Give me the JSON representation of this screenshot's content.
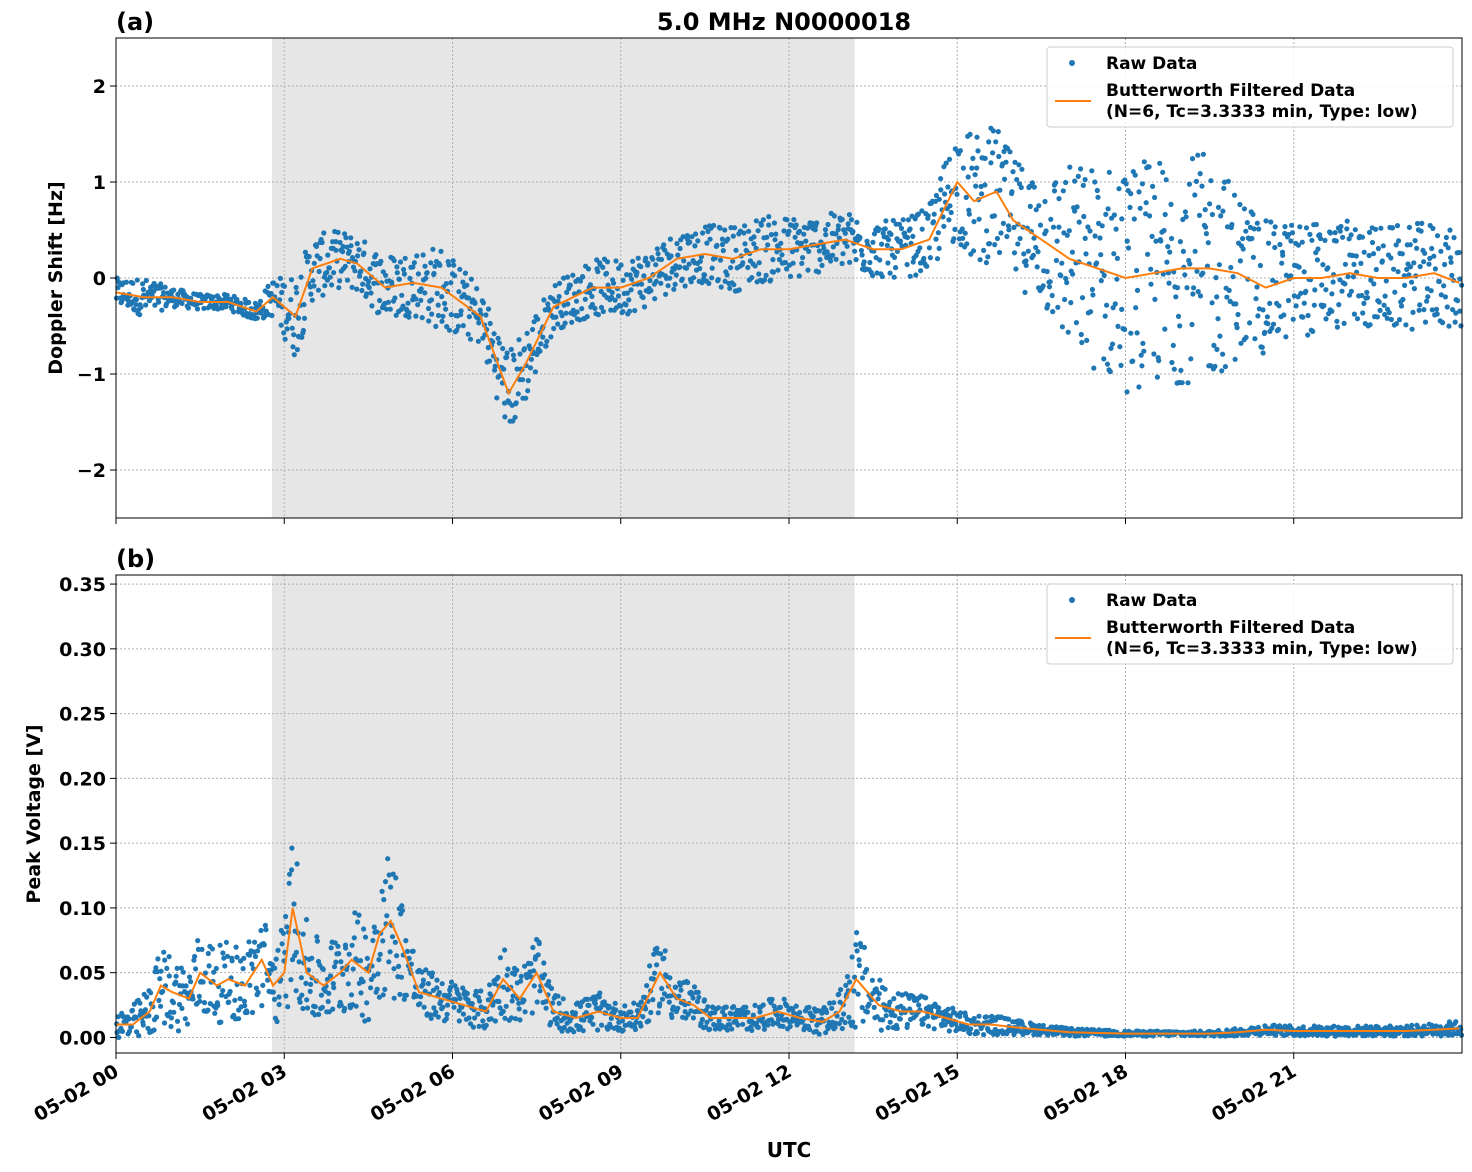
{
  "figure": {
    "title": "5.0 MHz N0000018",
    "xlabel": "UTC",
    "x_tick_labels": [
      "05-02 00",
      "05-02 03",
      "05-02 06",
      "05-02 09",
      "05-02 12",
      "05-02 15",
      "05-02 18",
      "05-02 21"
    ],
    "colors": {
      "raw": "#1f77b4",
      "filtered": "#ff7f0e",
      "shade": "#e6e6e6",
      "grid": "#b0b0b0"
    }
  },
  "chart_data": [
    {
      "type": "scatter",
      "panel_label": "(a)",
      "ylabel": "Doppler Shift [Hz]",
      "xlim": [
        0,
        24
      ],
      "ylim": [
        -2.5,
        2.5
      ],
      "y_ticks": [
        -2,
        -1,
        0,
        1,
        2
      ],
      "y_tick_labels": [
        "−2",
        "−1",
        "0",
        "1",
        "2"
      ],
      "grid": true,
      "legend_position": "top-right",
      "shaded_interval": [
        2.78,
        13.17
      ],
      "legend": {
        "raw": "Raw Data",
        "filtered_line1": "Butterworth Filtered Data",
        "filtered_line2": "(N=6, Tc=3.3333 min, Type: low)"
      },
      "series": [
        {
          "name": "Raw Data",
          "kind": "points",
          "x": [
            0.0,
            0.5,
            1.0,
            1.5,
            2.0,
            2.5,
            2.8,
            3.2,
            3.5,
            4.0,
            4.3,
            4.8,
            5.3,
            5.8,
            6.5,
            7.0,
            7.3,
            7.8,
            8.5,
            9.0,
            9.5,
            10.0,
            10.5,
            11.0,
            11.5,
            12.0,
            12.5,
            13.0,
            13.5,
            14.0,
            14.5,
            15.0,
            15.3,
            15.7,
            16.0,
            16.5,
            17.0,
            17.5,
            18.0,
            18.5,
            19.0,
            19.5,
            20.0,
            20.5,
            21.0,
            21.5,
            22.0,
            22.5,
            23.0,
            23.5,
            23.95
          ],
          "y": [
            -0.15,
            -0.2,
            -0.2,
            -0.25,
            -0.25,
            -0.35,
            -0.2,
            -0.4,
            0.1,
            0.2,
            0.15,
            -0.1,
            -0.05,
            -0.1,
            -0.4,
            -1.2,
            -0.9,
            -0.3,
            -0.1,
            -0.1,
            0.0,
            0.2,
            0.25,
            0.2,
            0.3,
            0.3,
            0.35,
            0.4,
            0.3,
            0.3,
            0.4,
            1.0,
            0.8,
            0.9,
            0.6,
            0.4,
            0.2,
            0.1,
            0.0,
            0.05,
            0.1,
            0.1,
            0.05,
            -0.1,
            0.0,
            0.0,
            0.05,
            0.0,
            0.0,
            0.05,
            -0.05
          ],
          "spread": [
            0.15,
            0.2,
            0.1,
            0.08,
            0.08,
            0.1,
            0.2,
            0.45,
            0.35,
            0.3,
            0.3,
            0.35,
            0.35,
            0.45,
            0.3,
            0.45,
            0.4,
            0.25,
            0.3,
            0.3,
            0.3,
            0.3,
            0.3,
            0.35,
            0.35,
            0.35,
            0.3,
            0.3,
            0.3,
            0.3,
            0.35,
            0.6,
            0.7,
            0.7,
            0.65,
            0.7,
            1.0,
            1.1,
            1.2,
            1.2,
            1.2,
            1.2,
            0.9,
            0.7,
            0.6,
            0.6,
            0.55,
            0.55,
            0.55,
            0.55,
            0.5
          ]
        },
        {
          "name": "Butterworth Filtered Data",
          "kind": "line",
          "x": [
            0.0,
            0.5,
            1.0,
            1.5,
            2.0,
            2.5,
            2.8,
            3.2,
            3.5,
            4.0,
            4.3,
            4.8,
            5.3,
            5.8,
            6.5,
            7.0,
            7.3,
            7.8,
            8.5,
            9.0,
            9.5,
            10.0,
            10.5,
            11.0,
            11.5,
            12.0,
            12.5,
            13.0,
            13.5,
            14.0,
            14.5,
            15.0,
            15.3,
            15.7,
            16.0,
            16.5,
            17.0,
            17.5,
            18.0,
            18.5,
            19.0,
            19.5,
            20.0,
            20.5,
            21.0,
            21.5,
            22.0,
            22.5,
            23.0,
            23.5,
            23.95
          ],
          "y": [
            -0.15,
            -0.2,
            -0.2,
            -0.25,
            -0.25,
            -0.35,
            -0.2,
            -0.4,
            0.1,
            0.2,
            0.15,
            -0.1,
            -0.05,
            -0.1,
            -0.4,
            -1.2,
            -0.9,
            -0.3,
            -0.1,
            -0.1,
            0.0,
            0.2,
            0.25,
            0.2,
            0.3,
            0.3,
            0.35,
            0.4,
            0.3,
            0.3,
            0.4,
            1.0,
            0.8,
            0.9,
            0.6,
            0.4,
            0.2,
            0.1,
            0.0,
            0.05,
            0.1,
            0.1,
            0.05,
            -0.1,
            0.0,
            0.0,
            0.05,
            0.0,
            0.0,
            0.05,
            -0.05
          ]
        }
      ]
    },
    {
      "type": "scatter",
      "panel_label": "(b)",
      "ylabel": "Peak Voltage [V]",
      "xlim": [
        0,
        24
      ],
      "ylim": [
        -0.012,
        0.357
      ],
      "y_ticks": [
        0.0,
        0.05,
        0.1,
        0.15,
        0.2,
        0.25,
        0.3,
        0.35
      ],
      "y_tick_labels": [
        "0.00",
        "0.05",
        "0.10",
        "0.15",
        "0.20",
        "0.25",
        "0.30",
        "0.35"
      ],
      "grid": true,
      "legend_position": "top-right",
      "shaded_interval": [
        2.78,
        13.17
      ],
      "legend": {
        "raw": "Raw Data",
        "filtered_line1": "Butterworth Filtered Data",
        "filtered_line2": "(N=6, Tc=3.3333 min, Type: low)"
      },
      "series": [
        {
          "name": "Raw Data",
          "kind": "points",
          "x": [
            0.0,
            0.3,
            0.6,
            0.8,
            1.0,
            1.3,
            1.5,
            1.8,
            2.0,
            2.3,
            2.6,
            2.8,
            3.0,
            3.15,
            3.4,
            3.7,
            4.0,
            4.2,
            4.5,
            4.7,
            4.9,
            5.1,
            5.4,
            5.8,
            6.2,
            6.6,
            6.9,
            7.2,
            7.5,
            7.8,
            8.2,
            8.6,
            9.0,
            9.3,
            9.7,
            10.0,
            10.3,
            10.6,
            11.0,
            11.4,
            11.8,
            12.2,
            12.6,
            12.9,
            13.2,
            13.6,
            14.0,
            14.4,
            14.8,
            15.2,
            15.6,
            16.0,
            16.5,
            17.0,
            18.0,
            19.0,
            19.5,
            20.0,
            20.5,
            21.0,
            22.0,
            23.0,
            23.5,
            23.95
          ],
          "y": [
            0.01,
            0.01,
            0.02,
            0.04,
            0.035,
            0.03,
            0.05,
            0.04,
            0.045,
            0.04,
            0.06,
            0.04,
            0.05,
            0.1,
            0.05,
            0.04,
            0.05,
            0.06,
            0.05,
            0.08,
            0.09,
            0.07,
            0.035,
            0.03,
            0.025,
            0.02,
            0.045,
            0.03,
            0.05,
            0.02,
            0.015,
            0.02,
            0.015,
            0.015,
            0.05,
            0.03,
            0.025,
            0.015,
            0.015,
            0.015,
            0.02,
            0.015,
            0.012,
            0.02,
            0.045,
            0.025,
            0.02,
            0.02,
            0.015,
            0.01,
            0.01,
            0.008,
            0.006,
            0.004,
            0.003,
            0.003,
            0.003,
            0.004,
            0.006,
            0.005,
            0.005,
            0.005,
            0.006,
            0.007
          ],
          "spread": [
            0.01,
            0.015,
            0.02,
            0.03,
            0.03,
            0.025,
            0.035,
            0.03,
            0.03,
            0.03,
            0.04,
            0.03,
            0.04,
            0.06,
            0.04,
            0.03,
            0.035,
            0.04,
            0.04,
            0.05,
            0.06,
            0.04,
            0.02,
            0.018,
            0.015,
            0.015,
            0.03,
            0.02,
            0.03,
            0.014,
            0.012,
            0.015,
            0.01,
            0.012,
            0.03,
            0.02,
            0.015,
            0.01,
            0.01,
            0.01,
            0.012,
            0.01,
            0.01,
            0.015,
            0.04,
            0.02,
            0.015,
            0.012,
            0.01,
            0.008,
            0.008,
            0.006,
            0.004,
            0.003,
            0.002,
            0.002,
            0.002,
            0.003,
            0.004,
            0.004,
            0.004,
            0.004,
            0.005,
            0.006
          ]
        },
        {
          "name": "Butterworth Filtered Data",
          "kind": "line",
          "x": [
            0.0,
            0.3,
            0.6,
            0.8,
            1.0,
            1.3,
            1.5,
            1.8,
            2.0,
            2.3,
            2.6,
            2.8,
            3.0,
            3.15,
            3.4,
            3.7,
            4.0,
            4.2,
            4.5,
            4.7,
            4.9,
            5.1,
            5.4,
            5.8,
            6.2,
            6.6,
            6.9,
            7.2,
            7.5,
            7.8,
            8.2,
            8.6,
            9.0,
            9.3,
            9.7,
            10.0,
            10.3,
            10.6,
            11.0,
            11.4,
            11.8,
            12.2,
            12.6,
            12.9,
            13.2,
            13.6,
            14.0,
            14.4,
            14.8,
            15.2,
            15.6,
            16.0,
            16.5,
            17.0,
            18.0,
            19.0,
            19.5,
            20.0,
            20.5,
            21.0,
            22.0,
            23.0,
            23.5,
            23.95
          ],
          "y": [
            0.01,
            0.01,
            0.02,
            0.04,
            0.035,
            0.03,
            0.05,
            0.04,
            0.045,
            0.04,
            0.06,
            0.04,
            0.05,
            0.1,
            0.05,
            0.04,
            0.05,
            0.06,
            0.05,
            0.08,
            0.09,
            0.07,
            0.035,
            0.03,
            0.025,
            0.02,
            0.045,
            0.03,
            0.05,
            0.02,
            0.015,
            0.02,
            0.015,
            0.015,
            0.05,
            0.03,
            0.025,
            0.015,
            0.015,
            0.015,
            0.02,
            0.015,
            0.012,
            0.02,
            0.045,
            0.025,
            0.02,
            0.02,
            0.015,
            0.01,
            0.01,
            0.008,
            0.006,
            0.004,
            0.003,
            0.003,
            0.003,
            0.004,
            0.006,
            0.005,
            0.005,
            0.005,
            0.006,
            0.007
          ]
        }
      ]
    }
  ]
}
